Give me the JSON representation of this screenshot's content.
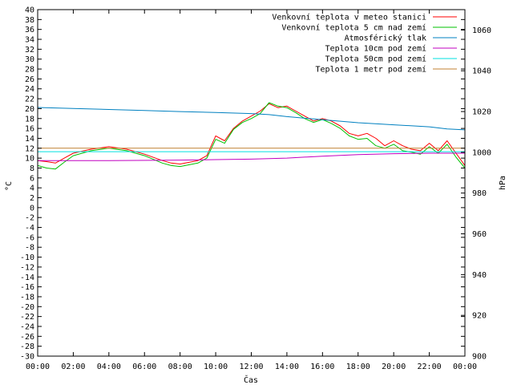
{
  "chart_data": {
    "type": "line",
    "xlabel": "Čas",
    "ylabel_left": "°C",
    "ylabel_right": "hPa",
    "x_ticks": [
      "00:00",
      "02:00",
      "04:00",
      "06:00",
      "08:00",
      "10:00",
      "12:00",
      "14:00",
      "16:00",
      "18:00",
      "20:00",
      "22:00",
      "00:00"
    ],
    "x_range": [
      0,
      24
    ],
    "y_left_range": [
      -30,
      40
    ],
    "y_left_step": 2,
    "y_right_range": [
      900,
      1070
    ],
    "y_right_ticks": [
      900,
      920,
      940,
      960,
      980,
      1000,
      1020,
      1040,
      1060
    ],
    "grid": false,
    "legend_position": "top-right",
    "series": [
      {
        "name": "Venkovní teplota v meteo stanici",
        "color": "#ff0000",
        "axis": "left",
        "x": [
          0,
          0.5,
          1,
          1.5,
          2,
          3,
          4,
          5,
          6,
          7,
          7.5,
          8,
          9,
          9.5,
          10,
          10.5,
          11,
          11.5,
          12,
          12.5,
          13,
          13.5,
          14,
          14.5,
          15,
          15.5,
          16,
          16.5,
          17,
          17.5,
          18,
          18.5,
          19,
          19.5,
          20,
          20.5,
          21,
          21.5,
          22,
          22.5,
          23,
          23.5,
          24
        ],
        "values": [
          9.5,
          9.3,
          9,
          10,
          11,
          11.8,
          12.3,
          11.8,
          10.8,
          9.5,
          9.0,
          8.8,
          9.5,
          10.5,
          14.5,
          13.5,
          16,
          17.5,
          18.5,
          19.5,
          21,
          20.2,
          20.5,
          19.5,
          18.5,
          17.5,
          18,
          17.5,
          16.5,
          15,
          14.5,
          15,
          14,
          12.5,
          13.5,
          12.5,
          11.8,
          11.5,
          13,
          11.5,
          13.5,
          11,
          8.5
        ]
      },
      {
        "name": "Venkovní teplota 5 cm nad zemí",
        "color": "#00c000",
        "axis": "left",
        "x": [
          0,
          0.5,
          1,
          1.5,
          2,
          3,
          4,
          5,
          6,
          7,
          7.5,
          8,
          9,
          9.5,
          10,
          10.5,
          11,
          11.5,
          12,
          12.5,
          13,
          13.5,
          14,
          14.5,
          15,
          15.5,
          16,
          16.5,
          17,
          17.5,
          18,
          18.5,
          19,
          19.5,
          20,
          20.5,
          21,
          21.5,
          22,
          22.5,
          23,
          23.5,
          24
        ],
        "values": [
          8.5,
          8,
          7.8,
          9.2,
          10.5,
          11.5,
          12,
          11.5,
          10.5,
          9,
          8.5,
          8.3,
          9,
          10,
          13.8,
          13,
          15.8,
          17.2,
          18,
          19,
          21.2,
          20.5,
          20.2,
          19.2,
          18,
          17.2,
          17.8,
          17,
          16,
          14.5,
          13.8,
          14,
          12.5,
          12,
          12.8,
          11.5,
          11.2,
          10.8,
          12.3,
          11,
          12.8,
          10.2,
          8
        ]
      },
      {
        "name": "Atmosférický tlak",
        "color": "#0080c0",
        "axis": "right",
        "x": [
          0,
          2,
          4,
          6,
          8,
          10,
          12,
          13,
          14,
          16,
          18,
          20,
          22,
          23,
          24
        ],
        "values": [
          1022,
          1021.5,
          1021,
          1020.5,
          1020,
          1019.5,
          1019,
          1018.5,
          1017.5,
          1016,
          1014.5,
          1013.5,
          1012.5,
          1011.5,
          1011
        ]
      },
      {
        "name": "Teplota 10cm pod zemí",
        "color": "#c000c0",
        "axis": "left",
        "x": [
          0,
          4,
          8,
          10,
          12,
          14,
          16,
          18,
          20,
          22,
          24
        ],
        "values": [
          9.5,
          9.5,
          9.6,
          9.7,
          9.8,
          10.0,
          10.4,
          10.7,
          10.9,
          11.0,
          11.0
        ]
      },
      {
        "name": "Teplota 50cm pod zemí",
        "color": "#00e0e0",
        "axis": "left",
        "x": [
          0,
          24
        ],
        "values": [
          11.3,
          11.3
        ]
      },
      {
        "name": "Teplota 1 metr pod zemí",
        "color": "#c08030",
        "axis": "left",
        "x": [
          0,
          24
        ],
        "values": [
          12.0,
          12.0
        ]
      }
    ]
  }
}
